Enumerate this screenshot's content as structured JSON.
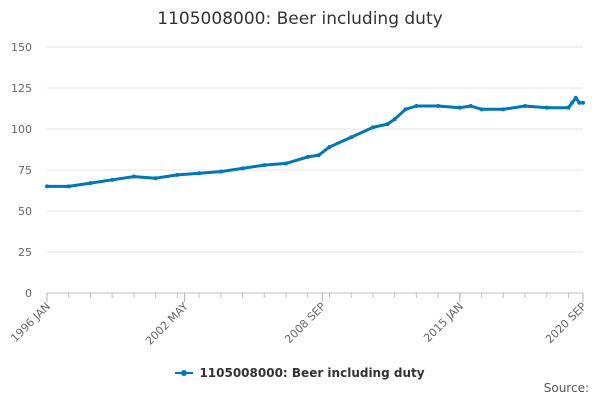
{
  "chart_data": {
    "type": "line",
    "title": "1105008000: Beer including duty",
    "x": [
      "1996-01",
      "1997-01",
      "1998-01",
      "1999-01",
      "2000-01",
      "2001-01",
      "2002-01",
      "2003-01",
      "2004-01",
      "2005-01",
      "2006-01",
      "2007-01",
      "2008-01",
      "2008-07",
      "2009-01",
      "2010-01",
      "2011-01",
      "2011-09",
      "2012-01",
      "2012-07",
      "2013-01",
      "2014-01",
      "2015-01",
      "2015-07",
      "2016-01",
      "2017-01",
      "2018-01",
      "2019-01",
      "2020-01",
      "2020-03",
      "2020-05",
      "2020-07",
      "2020-09"
    ],
    "series": [
      {
        "name": "1105008000: Beer including duty",
        "values": [
          65,
          65,
          67,
          69,
          71,
          70,
          72,
          73,
          74,
          76,
          78,
          79,
          83,
          84,
          89,
          95,
          101,
          103,
          106,
          112,
          114,
          114,
          113,
          114,
          112,
          112,
          114,
          113,
          113,
          116,
          119,
          116,
          116
        ],
        "color": "#0077b6"
      }
    ],
    "x_ticks": [
      "1996 JAN",
      "2002 MAY",
      "2008 SEP",
      "2015 JAN",
      "2020 SEP"
    ],
    "y_ticks": [
      0,
      25,
      50,
      75,
      100,
      125,
      150
    ],
    "ylim": [
      0,
      150
    ],
    "grid": "horizontal",
    "legend": "bottom-center"
  },
  "source_label": "Source:"
}
